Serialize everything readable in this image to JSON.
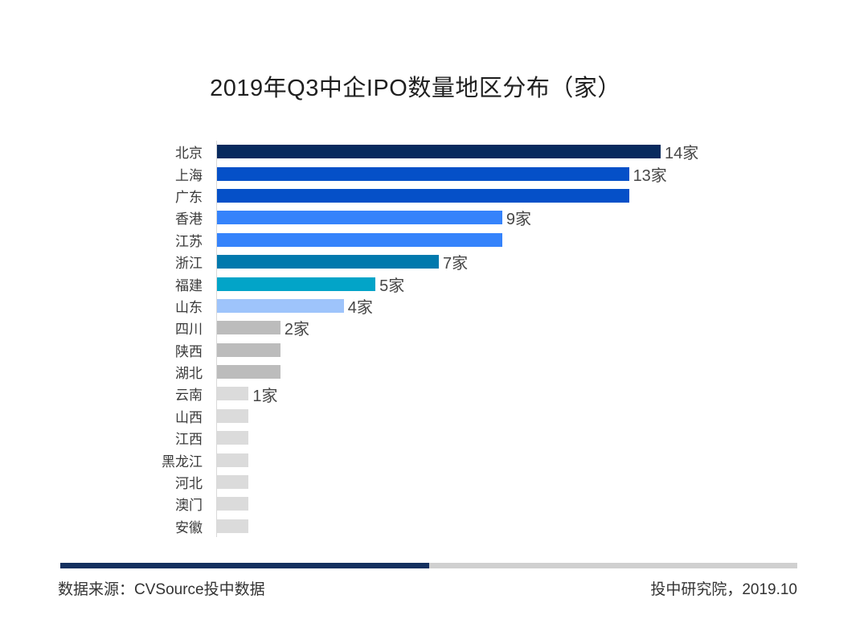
{
  "title": "2019年Q3中企IPO数量地区分布（家）",
  "footer": {
    "source": "数据来源：CVSource投中数据",
    "publisher": "投中研究院，2019.10"
  },
  "colors": {
    "divider_progress": "#14305f",
    "divider_track": "#d0d0d0",
    "axis_line": "#d9d9d9",
    "category_text": "#3a3a3a",
    "value_text": "#474747"
  },
  "chart_data": {
    "type": "bar",
    "orientation": "horizontal",
    "title": "2019年Q3中企IPO数量地区分布（家）",
    "unit": "家",
    "categories": [
      "北京",
      "上海",
      "广东",
      "香港",
      "江苏",
      "浙江",
      "福建",
      "山东",
      "四川",
      "陕西",
      "湖北",
      "云南",
      "山西",
      "江西",
      "黑龙江",
      "河北",
      "澳门",
      "安徽"
    ],
    "values": [
      14,
      13,
      13,
      9,
      9,
      7,
      5,
      4,
      2,
      2,
      2,
      1,
      1,
      1,
      1,
      1,
      1,
      1
    ],
    "value_labels": [
      "14家",
      "13家",
      "",
      "9家",
      "",
      "7家",
      "5家",
      "4家",
      "2家",
      "",
      "",
      "1家",
      "",
      "",
      "",
      "",
      "",
      ""
    ],
    "bar_colors": [
      "#082a5e",
      "#0550c8",
      "#0550c8",
      "#3583fb",
      "#3583fb",
      "#0179ad",
      "#02a4c8",
      "#9ec4fb",
      "#bcbcbc",
      "#bcbcbc",
      "#bcbcbc",
      "#dbdbdb",
      "#dbdbdb",
      "#dbdbdb",
      "#dbdbdb",
      "#dbdbdb",
      "#dbdbdb",
      "#dbdbdb"
    ],
    "xlim": [
      0,
      14
    ],
    "grid": false,
    "legend": false,
    "value_labels_rule": "only first bar of each equal-value group is labeled"
  }
}
